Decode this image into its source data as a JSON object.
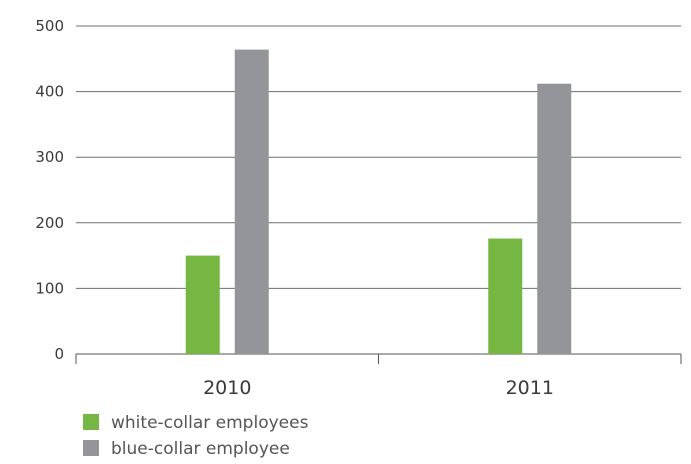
{
  "chart_data": {
    "type": "bar",
    "categories": [
      "2010",
      "2011"
    ],
    "series": [
      {
        "name": "white-collar employees",
        "values": [
          150,
          176
        ],
        "color": "#76b642"
      },
      {
        "name": "blue-collar employee",
        "values": [
          464,
          412
        ],
        "color": "#939598"
      }
    ],
    "ylim": [
      0,
      500
    ],
    "yticks": [
      0,
      100,
      200,
      300,
      400,
      500
    ],
    "grid": true,
    "legend": "bottom-left"
  }
}
